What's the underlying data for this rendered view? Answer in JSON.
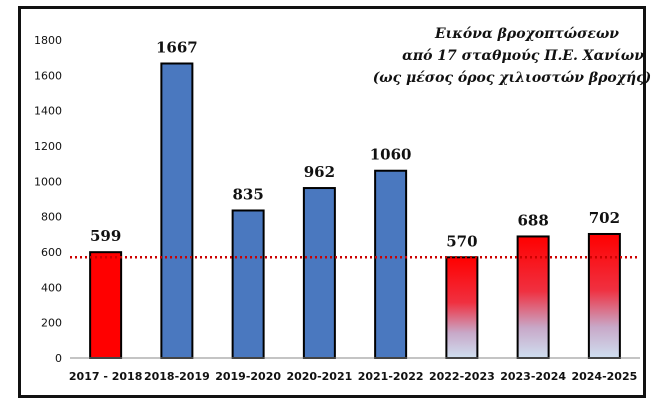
{
  "chart_data": {
    "type": "bar",
    "title_lines": [
      "Εικόνα βροχοπτώσεων",
      "από 17 σταθμούς Π.Ε. Χανίων",
      "(ως μέσος όρος χιλιοστών βροχής)"
    ],
    "categories": [
      "2017 - 2018",
      "2018-2019",
      "2019-2020",
      "2020-2021",
      "2021-2022",
      "2022-2023",
      "2023-2024",
      "2024-2025"
    ],
    "values": [
      599,
      1667,
      835,
      962,
      1060,
      570,
      688,
      702
    ],
    "value_labels": [
      "599",
      "1667",
      "835",
      "962",
      "1060",
      "570",
      "688",
      "702"
    ],
    "bar_styles": [
      "red",
      "blue",
      "blue",
      "blue",
      "blue",
      "gradient",
      "gradient",
      "gradient"
    ],
    "ylim": [
      0,
      1800
    ],
    "yticks": [
      0,
      200,
      400,
      600,
      800,
      1000,
      1200,
      1400,
      1600,
      1800
    ],
    "ytick_labels": [
      "0",
      "200",
      "400",
      "600",
      "800",
      "1000",
      "1200",
      "1400",
      "1600",
      "1800"
    ],
    "reference_line": {
      "value": 570,
      "style": "dotted",
      "color": "#cc0000"
    },
    "grid": false,
    "legend": "none",
    "colors": {
      "red": "#ff0000",
      "blue": "#4a78bf",
      "gradient_top": "#ff0000",
      "gradient_bottom": "#cfdff0"
    }
  }
}
